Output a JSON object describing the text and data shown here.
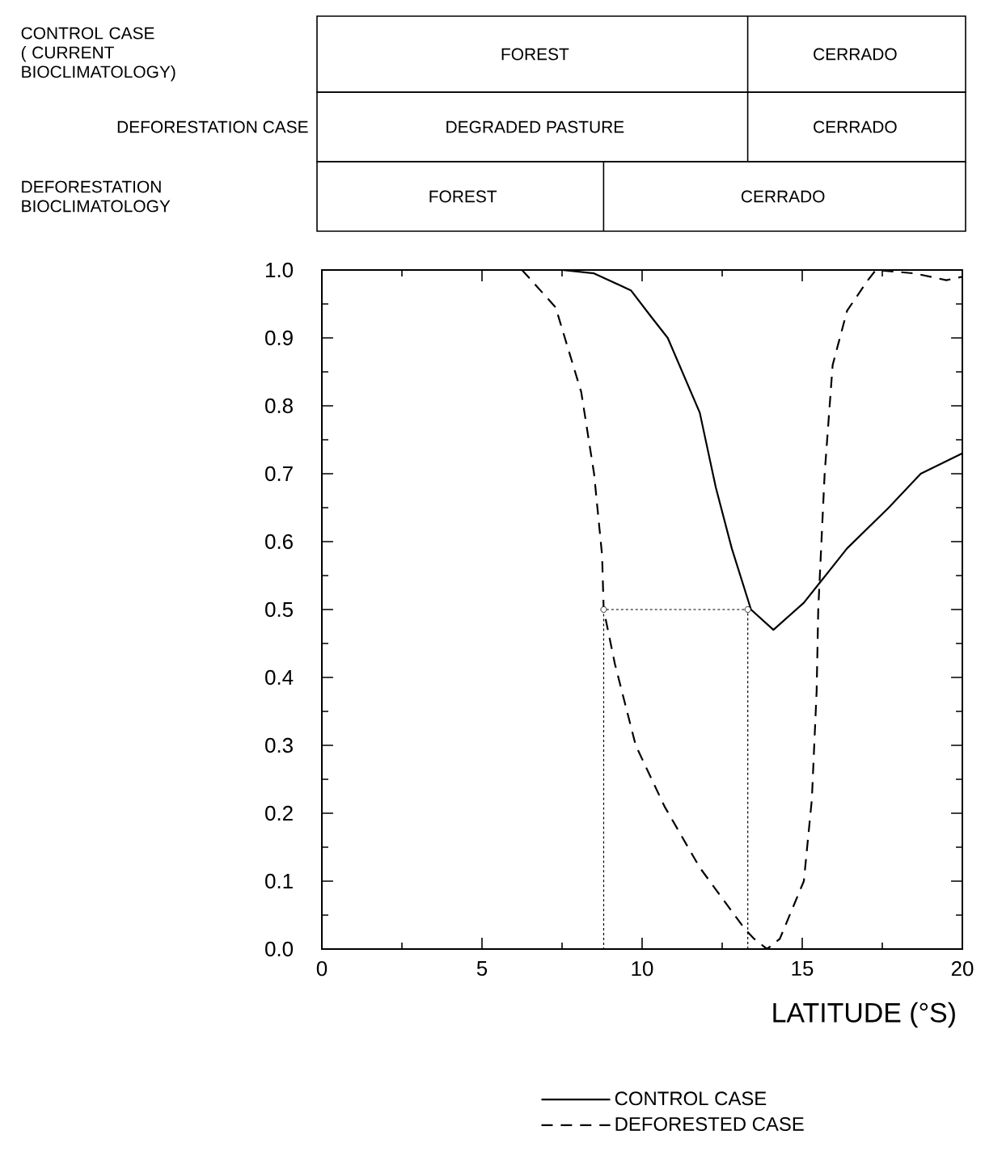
{
  "chart_data": {
    "type": "line",
    "xlabel": "LATITUDE (°S)",
    "xlim": [
      0,
      20
    ],
    "xticks": [
      0,
      5,
      10,
      15,
      20
    ],
    "ylim": [
      0,
      1
    ],
    "yticks": [
      {
        "value": 0,
        "label": "0.0"
      },
      {
        "value": 0.1,
        "label": "0.1"
      },
      {
        "value": 0.2,
        "label": "0.2"
      },
      {
        "value": 0.3,
        "label": "0.3"
      },
      {
        "value": 0.4,
        "label": "0.4"
      },
      {
        "value": 0.5,
        "label": "0.5"
      },
      {
        "value": 0.6,
        "label": "0.6"
      },
      {
        "value": 0.7,
        "label": "0.7"
      },
      {
        "value": 0.8,
        "label": "0.8"
      },
      {
        "value": 0.9,
        "label": "0.9"
      },
      {
        "value": 1,
        "label": "1.0"
      }
    ],
    "legend": "bottom",
    "grid": false,
    "series": [
      {
        "name": "CONTROL CASE",
        "color": "#000000",
        "line_style": "solid",
        "x": [
          7.5,
          8.5,
          9.65,
          10.3,
          10.8,
          11.8,
          12.3,
          12.8,
          13.4,
          14.1,
          15.05,
          16.4,
          17.7,
          18.7,
          20
        ],
        "values": [
          1.0,
          0.995,
          0.97,
          0.93,
          0.9,
          0.79,
          0.68,
          0.59,
          0.5,
          0.47,
          0.51,
          0.59,
          0.65,
          0.7,
          0.73
        ]
      },
      {
        "name": "DEFORESTED CASE",
        "color": "#000000",
        "line_style": "dashed",
        "x": [
          6.25,
          7.3,
          8.1,
          8.5,
          8.75,
          8.8,
          9.15,
          9.8,
          10.7,
          11.8,
          13.2,
          13.5,
          13.9,
          14.3,
          15.05,
          15.3,
          15.45,
          15.5,
          15.7,
          15.95,
          16.4,
          17.05,
          17.3,
          18.5,
          19.5,
          20
        ],
        "values": [
          1.0,
          0.945,
          0.82,
          0.7,
          0.58,
          0.5,
          0.42,
          0.3,
          0.21,
          0.12,
          0.03,
          0.015,
          0.0,
          0.015,
          0.1,
          0.22,
          0.38,
          0.5,
          0.7,
          0.86,
          0.94,
          0.985,
          1.0,
          0.995,
          0.985,
          0.99
        ]
      },
      {
        "type": "line",
        "color": "#000000",
        "line_style": "dotted",
        "marker": "none",
        "x": [
          13.3,
          13.3,
          8.8,
          8.8
        ],
        "values": [
          0,
          0.5,
          0.5,
          0
        ]
      },
      {
        "type": "scatter",
        "color": "#000000",
        "marker": "circle",
        "x": [
          8.8,
          13.3
        ],
        "values": [
          0.5,
          0.5
        ]
      }
    ],
    "annotations": [
      "CONTROL CASE ( CURRENT BIOCLIMATOLOGY)",
      "FOREST",
      "CERRADO",
      "DEFORESTATION CASE",
      "DEGRADED PASTURE",
      "CERRADO",
      "DEFORESTATION BIOCLIMATOLOGY",
      "FOREST",
      "CERRADO"
    ]
  }
}
